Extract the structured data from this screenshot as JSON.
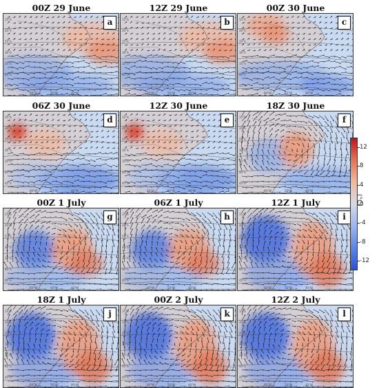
{
  "panels": [
    {
      "title": "00Z 29 June",
      "letter": "a",
      "anomaly": "weak"
    },
    {
      "title": "12Z 29 June",
      "letter": "b",
      "anomaly": "weak"
    },
    {
      "title": "00Z 30 June",
      "letter": "c",
      "anomaly": "weak-warm-west"
    },
    {
      "title": "06Z 30 June",
      "letter": "d",
      "anomaly": "warm-west-hotspot"
    },
    {
      "title": "12Z 30 June",
      "letter": "e",
      "anomaly": "warm-west-hotspot"
    },
    {
      "title": "18Z 30 June",
      "letter": "f",
      "anomaly": "dipole-developing"
    },
    {
      "title": "00Z 1 July",
      "letter": "g",
      "anomaly": "dipole"
    },
    {
      "title": "06Z 1 July",
      "letter": "h",
      "anomaly": "dipole"
    },
    {
      "title": "12Z 1 July",
      "letter": "i",
      "anomaly": "dipole-strong"
    },
    {
      "title": "18Z 1 July",
      "letter": "j",
      "anomaly": "dipole-strong"
    },
    {
      "title": "00Z 2 July",
      "letter": "k",
      "anomaly": "dipole-strong"
    },
    {
      "title": "12Z 2 July",
      "letter": "l",
      "anomaly": "dipole-strong"
    }
  ],
  "axis_labels": {
    "lat": [
      "15°S",
      "20°S",
      "25°S",
      "30°S",
      "35°S",
      "40°S",
      "45°S"
    ],
    "lon": [
      "60°W",
      "50°W",
      "40°W"
    ]
  },
  "colorbar": {
    "unit": "(°C)",
    "ticks": [
      "12",
      "8",
      "4",
      "0",
      "-4",
      "-8",
      "-12"
    ],
    "range": [
      -14,
      14
    ],
    "colors": [
      "#2a52d6",
      "#5b86e8",
      "#9ab7ee",
      "#d3dae6",
      "#f1b89e",
      "#e27454",
      "#c3141b"
    ]
  }
}
